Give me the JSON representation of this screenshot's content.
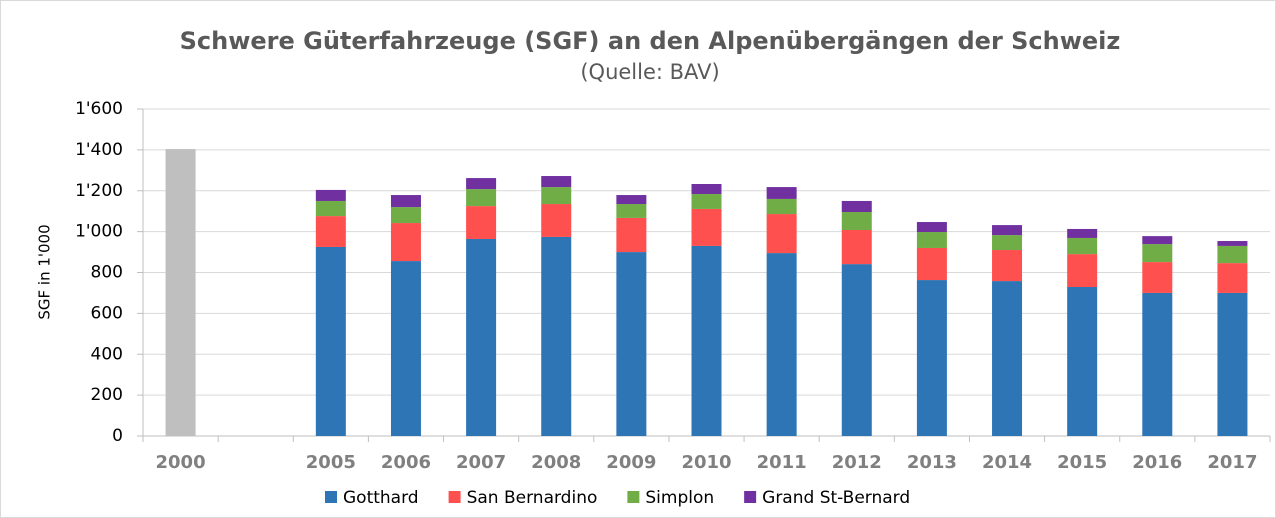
{
  "chart_data": {
    "type": "stacked_bar",
    "title": "Schwere Güterfahrzeuge (SGF) an den Alpenübergängen der Schweiz",
    "subtitle": "(Quelle: BAV)",
    "y_label": "SGF in 1'000",
    "categories": [
      "2000",
      null,
      "2005",
      "2006",
      "2007",
      "2008",
      "2009",
      "2010",
      "2011",
      "2012",
      "2013",
      "2014",
      "2015",
      "2016",
      "2017"
    ],
    "series": [
      {
        "color": "#bfbfbf",
        "values": [
          1404,
          null,
          null,
          null,
          null,
          null,
          null,
          null,
          null,
          null,
          null,
          null,
          null,
          null,
          null
        ]
      },
      {
        "name": "Gotthard",
        "color": "#2e75b6",
        "values": [
          null,
          null,
          925,
          856,
          964,
          974,
          900,
          930,
          895,
          841,
          763,
          758,
          729,
          700,
          700
        ]
      },
      {
        "name": "San Bernardino",
        "color": "#ff5050",
        "values": [
          null,
          null,
          151,
          186,
          161,
          161,
          167,
          181,
          191,
          167,
          157,
          152,
          161,
          151,
          146
        ]
      },
      {
        "name": "Simplon",
        "color": "#70ad47",
        "values": [
          null,
          null,
          74,
          78,
          83,
          83,
          68,
          73,
          74,
          88,
          78,
          73,
          79,
          88,
          84
        ]
      },
      {
        "name": "Grand St-Bernard",
        "color": "#7030a0",
        "values": [
          null,
          null,
          54,
          59,
          54,
          54,
          44,
          49,
          58,
          54,
          49,
          49,
          44,
          39,
          24
        ]
      }
    ],
    "ylim": [
      0,
      1600
    ],
    "yticks": [
      0,
      200,
      400,
      600,
      800,
      {
        "value": 1000,
        "label": "1'000"
      },
      {
        "value": 1200,
        "label": "1'200"
      },
      {
        "value": 1400,
        "label": "1'400"
      },
      {
        "value": 1600,
        "label": "1'600"
      }
    ],
    "grid": true
  }
}
